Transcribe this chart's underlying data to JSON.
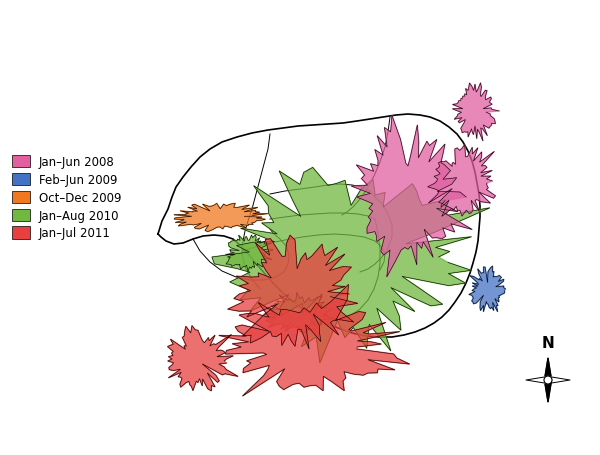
{
  "legend_entries": [
    {
      "label": "Jan–Jun 2008",
      "color": "#E060A0"
    },
    {
      "label": "Feb–Jun 2009",
      "color": "#4472C4"
    },
    {
      "label": "Oct–Dec 2009",
      "color": "#F07820"
    },
    {
      "label": "Jan–Aug 2010",
      "color": "#70B840"
    },
    {
      "label": "Jan–Jul 2011",
      "color": "#E84040"
    }
  ],
  "background_color": "#FFFFFF",
  "figsize": [
    6.0,
    4.56
  ],
  "dpi": 100
}
